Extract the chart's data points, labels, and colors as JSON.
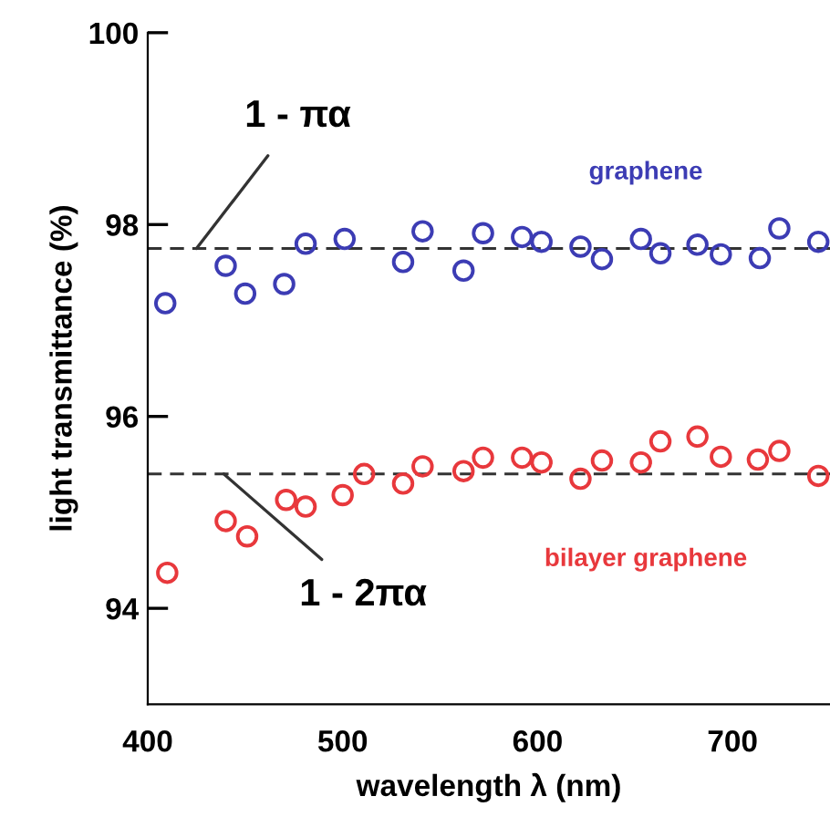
{
  "chart_data": {
    "type": "scatter",
    "xlabel": "wavelength λ (nm)",
    "ylabel": "light transmittance (%)",
    "xlim": [
      400,
      750
    ],
    "ylim": [
      93,
      100
    ],
    "xticks": [
      400,
      500,
      600,
      700
    ],
    "yticks": [
      94,
      96,
      98,
      100
    ],
    "grid": false,
    "legend": false,
    "marker": "circle",
    "series": [
      {
        "name": "graphene",
        "color": "#3c3cb4",
        "x": [
          409,
          440,
          450,
          470,
          481,
          501,
          531,
          541,
          562,
          572,
          592,
          602,
          622,
          633,
          653,
          663,
          682,
          694,
          714,
          724,
          744
        ],
        "values": [
          97.18,
          97.57,
          97.28,
          97.38,
          97.8,
          97.85,
          97.61,
          97.93,
          97.52,
          97.91,
          97.87,
          97.82,
          97.77,
          97.64,
          97.85,
          97.7,
          97.79,
          97.69,
          97.65,
          97.96,
          97.82
        ]
      },
      {
        "name": "bilayer graphene",
        "color": "#e8383c",
        "x": [
          410,
          440,
          451,
          471,
          481,
          500,
          511,
          531,
          541,
          562,
          572,
          592,
          602,
          622,
          633,
          653,
          663,
          682,
          694,
          713,
          724,
          744
        ],
        "values": [
          94.37,
          94.91,
          94.75,
          95.13,
          95.06,
          95.18,
          95.4,
          95.3,
          95.48,
          95.43,
          95.57,
          95.57,
          95.52,
          95.35,
          95.54,
          95.52,
          95.74,
          95.79,
          95.58,
          95.55,
          95.64,
          95.38
        ]
      }
    ],
    "ref_lines": [
      {
        "axis": "y",
        "value": 97.75,
        "color": "#333333",
        "line_style": "dashed"
      },
      {
        "axis": "y",
        "value": 95.4,
        "color": "#333333",
        "line_style": "dashed"
      }
    ],
    "annotations": [
      {
        "text": "1 - πα",
        "x": 425,
        "y": 97.75
      },
      {
        "text": "1 - 2πα",
        "x": 439,
        "y": 95.4
      }
    ]
  }
}
